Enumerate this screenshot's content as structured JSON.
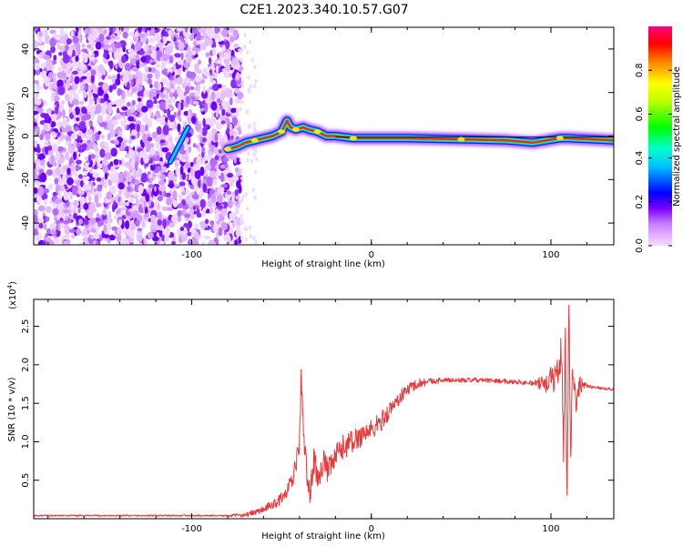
{
  "title": "C2E1.2023.340.10.57.G07",
  "colorbar": {
    "label": "Normalized spectral amplitude",
    "ticks": [
      0.0,
      0.2,
      0.4,
      0.6,
      0.8
    ],
    "range": [
      0,
      1
    ]
  },
  "chart_data": [
    {
      "type": "heatmap",
      "xlabel": "Height of straight line (km)",
      "ylabel": "Frequency (Hz)",
      "xlim": [
        -188,
        135
      ],
      "ylim": [
        -50,
        50
      ],
      "xticks": [
        -100,
        0,
        100
      ],
      "yticks": [
        -40,
        -20,
        0,
        20,
        40
      ],
      "noise_region_x": [
        -188,
        -73
      ],
      "ridge": [
        {
          "x": -80,
          "y": -6
        },
        {
          "x": -75,
          "y": -5
        },
        {
          "x": -70,
          "y": -3
        },
        {
          "x": -65,
          "y": -2
        },
        {
          "x": -60,
          "y": -1
        },
        {
          "x": -55,
          "y": 0
        },
        {
          "x": -50,
          "y": 2
        },
        {
          "x": -47,
          "y": 7
        },
        {
          "x": -45,
          "y": 4
        },
        {
          "x": -42,
          "y": 3
        },
        {
          "x": -38,
          "y": 4
        },
        {
          "x": -35,
          "y": 3
        },
        {
          "x": -30,
          "y": 2
        },
        {
          "x": -25,
          "y": 0
        },
        {
          "x": -20,
          "y": 0
        },
        {
          "x": -10,
          "y": -1
        },
        {
          "x": 0,
          "y": -1
        },
        {
          "x": 20,
          "y": -1
        },
        {
          "x": 50,
          "y": -1.5
        },
        {
          "x": 75,
          "y": -2
        },
        {
          "x": 90,
          "y": -3
        },
        {
          "x": 105,
          "y": -1
        },
        {
          "x": 110,
          "y": -1
        },
        {
          "x": 135,
          "y": -2
        }
      ],
      "reference_line_y": -0.5,
      "streak": [
        {
          "x": -112,
          "y": -12
        },
        {
          "x": -102,
          "y": 4
        }
      ]
    },
    {
      "type": "line",
      "xlabel": "Height of straight line (km)",
      "ylabel": "SNR (10 * v/v)",
      "y_multiplier": "(x10",
      "y_multiplier_exp": "4",
      "y_multiplier_close": ")",
      "xlim": [
        -188,
        135
      ],
      "ylim": [
        0,
        2.85
      ],
      "xticks": [
        -100,
        0,
        100
      ],
      "yticks": [
        0.5,
        1.0,
        1.5,
        2.0,
        2.5
      ],
      "series": [
        {
          "color": "#e8383a",
          "points": [
            {
              "x": -188,
              "y": 0.04
            },
            {
              "x": -120,
              "y": 0.04
            },
            {
              "x": -80,
              "y": 0.04
            },
            {
              "x": -70,
              "y": 0.05
            },
            {
              "x": -62,
              "y": 0.1
            },
            {
              "x": -55,
              "y": 0.18
            },
            {
              "x": -48,
              "y": 0.3
            },
            {
              "x": -44,
              "y": 0.5
            },
            {
              "x": -42,
              "y": 0.7
            },
            {
              "x": -40,
              "y": 1.0
            },
            {
              "x": -39,
              "y": 1.9
            },
            {
              "x": -38,
              "y": 1.2
            },
            {
              "x": -36,
              "y": 0.6
            },
            {
              "x": -34,
              "y": 0.3
            },
            {
              "x": -32,
              "y": 0.8
            },
            {
              "x": -30,
              "y": 0.5
            },
            {
              "x": -27,
              "y": 0.75
            },
            {
              "x": -24,
              "y": 0.6
            },
            {
              "x": -20,
              "y": 0.8
            },
            {
              "x": -15,
              "y": 0.95
            },
            {
              "x": -10,
              "y": 1.0
            },
            {
              "x": -5,
              "y": 1.1
            },
            {
              "x": 0,
              "y": 1.15
            },
            {
              "x": 5,
              "y": 1.25
            },
            {
              "x": 10,
              "y": 1.4
            },
            {
              "x": 15,
              "y": 1.55
            },
            {
              "x": 20,
              "y": 1.68
            },
            {
              "x": 25,
              "y": 1.75
            },
            {
              "x": 30,
              "y": 1.78
            },
            {
              "x": 40,
              "y": 1.8
            },
            {
              "x": 60,
              "y": 1.8
            },
            {
              "x": 80,
              "y": 1.78
            },
            {
              "x": 95,
              "y": 1.75
            },
            {
              "x": 100,
              "y": 1.8
            },
            {
              "x": 104,
              "y": 1.9
            },
            {
              "x": 106,
              "y": 2.2
            },
            {
              "x": 107,
              "y": 0.8
            },
            {
              "x": 108,
              "y": 2.4
            },
            {
              "x": 109,
              "y": 0.3
            },
            {
              "x": 110,
              "y": 2.85
            },
            {
              "x": 111,
              "y": 0.7
            },
            {
              "x": 112,
              "y": 2.0
            },
            {
              "x": 114,
              "y": 1.5
            },
            {
              "x": 116,
              "y": 1.75
            },
            {
              "x": 120,
              "y": 1.72
            },
            {
              "x": 135,
              "y": 1.68
            }
          ],
          "noise_amplitude": [
            {
              "x": -188,
              "a": 0.01
            },
            {
              "x": -80,
              "a": 0.01
            },
            {
              "x": -55,
              "a": 0.06
            },
            {
              "x": -30,
              "a": 0.18
            },
            {
              "x": 0,
              "a": 0.15
            },
            {
              "x": 20,
              "a": 0.08
            },
            {
              "x": 40,
              "a": 0.03
            },
            {
              "x": 90,
              "a": 0.03
            },
            {
              "x": 105,
              "a": 0.25
            },
            {
              "x": 115,
              "a": 0.15
            },
            {
              "x": 120,
              "a": 0.02
            },
            {
              "x": 135,
              "a": 0.02
            }
          ]
        }
      ]
    }
  ]
}
